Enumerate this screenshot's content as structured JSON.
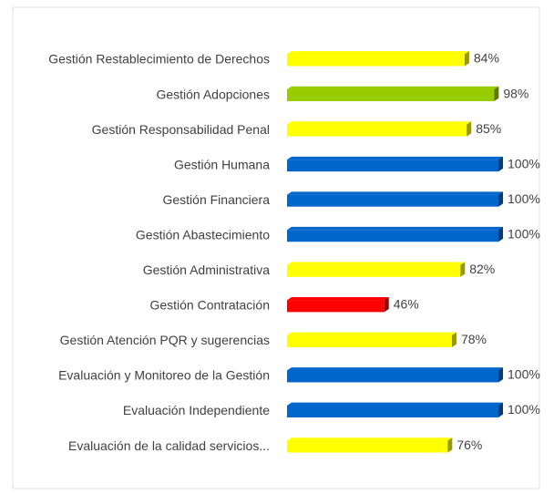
{
  "chart_data": {
    "type": "bar",
    "orientation": "horizontal",
    "categories": [
      "Gestión Restablecimiento de Derechos",
      "Gestión Adopciones",
      "Gestión Responsabilidad Penal",
      "Gestión Humana",
      "Gestión Financiera",
      "Gestión Abastecimiento",
      "Gestión Administrativa",
      "Gestión Contratación",
      "Gestión Atención PQR y sugerencias",
      "Evaluación y Monitoreo de la Gestión",
      "Evaluación Independiente",
      "Evaluación de la calidad servicios..."
    ],
    "values": [
      84,
      98,
      85,
      100,
      100,
      100,
      82,
      46,
      78,
      100,
      100,
      76
    ],
    "value_labels": [
      "84%",
      "98%",
      "85%",
      "100%",
      "100%",
      "100%",
      "82%",
      "46%",
      "78%",
      "100%",
      "100%",
      "76%"
    ],
    "colors": [
      "#ffff00",
      "#99cc00",
      "#ffff00",
      "#0066cc",
      "#0066cc",
      "#0066cc",
      "#ffff00",
      "#ff0000",
      "#ffff00",
      "#0066cc",
      "#0066cc",
      "#ffff00"
    ],
    "xlim": [
      0,
      100
    ]
  }
}
